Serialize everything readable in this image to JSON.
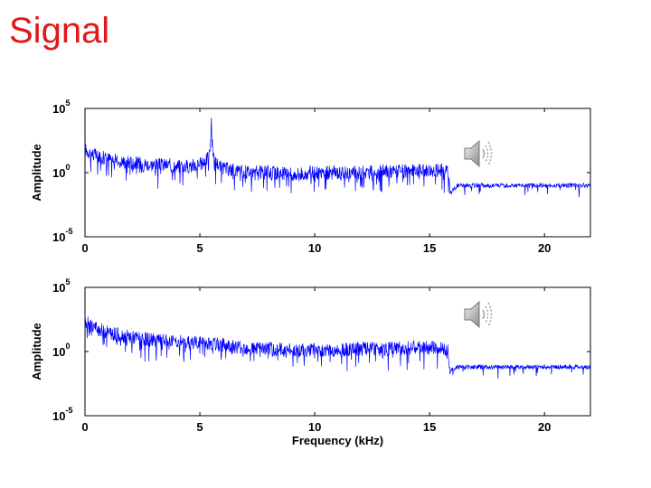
{
  "slide": {
    "title": "Signal"
  },
  "icons": [
    "speaker-icon",
    "speaker-icon"
  ],
  "chart_data": [
    {
      "type": "line",
      "color": "#0000ff",
      "xlabel": "",
      "ylabel": "Amplitude",
      "x_ticks": [
        "0",
        "5",
        "10",
        "15",
        "20"
      ],
      "y_ticks": [
        {
          "base": "10",
          "exp": "5"
        },
        {
          "base": "10",
          "exp": "0"
        },
        {
          "base": "10",
          "exp": "-5"
        }
      ],
      "xlim": [
        0,
        22
      ],
      "ylim_log10": [
        -5,
        5
      ],
      "scale_y": "log",
      "series": [
        {
          "x": [
            0,
            0.5,
            1,
            1.5,
            2,
            2.5,
            3,
            3.5,
            4,
            4.5,
            5,
            5.4,
            5.5,
            5.6,
            6,
            7,
            8,
            9,
            10,
            11,
            12,
            13,
            14,
            15,
            15.8,
            15.9,
            16.2,
            17,
            18,
            19,
            20,
            21,
            22
          ],
          "y_log10": [
            1.8,
            1.3,
            1.1,
            0.9,
            0.8,
            0.7,
            0.6,
            0.6,
            0.5,
            0.5,
            0.6,
            1.2,
            3.8,
            1.0,
            0.3,
            0.1,
            0.0,
            -0.1,
            0.0,
            0.0,
            0.0,
            0.1,
            0.1,
            0.2,
            0.2,
            -1.6,
            -1.0,
            -1.0,
            -1.0,
            -1.0,
            -1.0,
            -1.0,
            -1.0
          ]
        }
      ]
    },
    {
      "type": "line",
      "color": "#0000ff",
      "xlabel": "Frequency (kHz)",
      "ylabel": "Amplitude",
      "x_ticks": [
        "0",
        "5",
        "10",
        "15",
        "20"
      ],
      "y_ticks": [
        {
          "base": "10",
          "exp": "5"
        },
        {
          "base": "10",
          "exp": "0"
        },
        {
          "base": "10",
          "exp": "-5"
        }
      ],
      "xlim": [
        0,
        22
      ],
      "ylim_log10": [
        -5,
        5
      ],
      "scale_y": "log",
      "series": [
        {
          "x": [
            0,
            0.5,
            1,
            1.5,
            2,
            2.5,
            3,
            3.5,
            4,
            4.5,
            5,
            5.5,
            6,
            7,
            8,
            9,
            10,
            11,
            12,
            13,
            14,
            15,
            15.8,
            15.9,
            16.2,
            17,
            18,
            19,
            20,
            21,
            22
          ],
          "y_log10": [
            2.3,
            1.8,
            1.5,
            1.3,
            1.1,
            1.0,
            0.9,
            0.8,
            0.8,
            0.7,
            0.7,
            0.6,
            0.5,
            0.3,
            0.2,
            0.1,
            0.1,
            0.1,
            0.2,
            0.2,
            0.3,
            0.3,
            0.2,
            -1.5,
            -1.2,
            -1.2,
            -1.2,
            -1.2,
            -1.2,
            -1.2,
            -1.2
          ]
        }
      ]
    }
  ]
}
